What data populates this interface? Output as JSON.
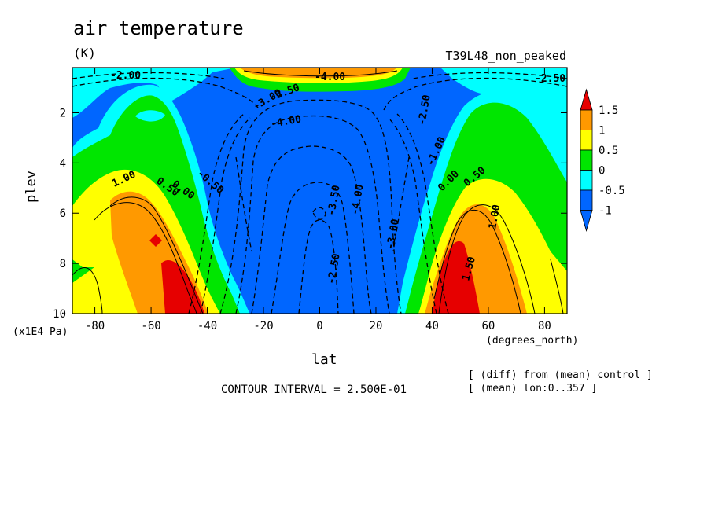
{
  "chart_data": {
    "type": "heatmap",
    "title": "air temperature",
    "units": "(K)",
    "dataset": "T39L48_non_peaked",
    "xlabel": "lat",
    "x_unit": "(degrees_north)",
    "ylabel": "plev",
    "y_unit": "(x1E4 Pa)",
    "x_ticks": [
      "-80",
      "-60",
      "-40",
      "-20",
      "0",
      "20",
      "40",
      "60",
      "80"
    ],
    "y_ticks": [
      "2",
      "4",
      "6",
      "8",
      "10"
    ],
    "xlim": [
      -88,
      88
    ],
    "ylim": [
      10,
      0.2
    ],
    "colorbar_ticks": [
      "1.5",
      "1",
      "0.5",
      "0",
      "-0.5",
      "-1"
    ],
    "colorbar_colors": [
      "#e60000",
      "#ff9900",
      "#ffff00",
      "#00e600",
      "#00ffff",
      "#0066ff",
      "#0000cc"
    ],
    "contour_interval": "CONTOUR INTERVAL = 2.500E-01",
    "notes": [
      "[ (diff) from (mean) control ]",
      "[ (mean) lon:0..357 ]"
    ],
    "contour_labels": [
      "-2.00",
      "-2.50",
      "-3.00",
      "-3.50",
      "-4.00",
      "-4.00",
      "-3.50",
      "-3.00",
      "-2.50",
      "1.00",
      "0.50",
      "0.00",
      "-0.50",
      "0.00",
      "0.50",
      "1.00",
      "1.50",
      "-2.50",
      "-1.00",
      "-4.00"
    ],
    "features": [
      {
        "lat": -55,
        "plev": 9.2,
        "value": 1.6
      },
      {
        "lat": 50,
        "plev": 9.0,
        "value": 1.7
      },
      {
        "lat": -62,
        "plev": 2.0,
        "value": 0.1
      },
      {
        "lat": 63,
        "plev": 2.3,
        "value": 0.1
      },
      {
        "lat": 0,
        "plev": 5.5,
        "value": -4.0
      },
      {
        "lat": 0,
        "plev": 0.5,
        "value": 1.0
      }
    ]
  }
}
